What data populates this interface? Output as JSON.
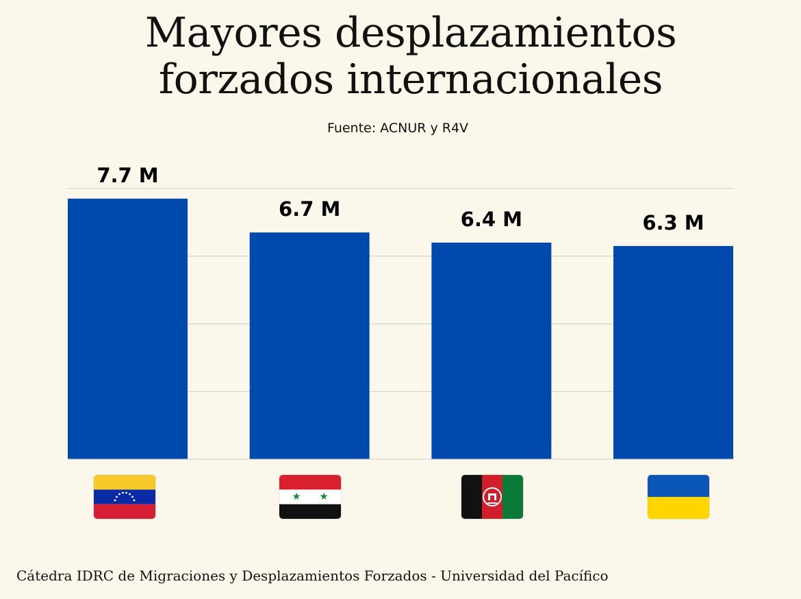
{
  "title_lines": [
    "Mayores desplazamientos",
    "forzados internacionales"
  ],
  "source": "Fuente: ACNUR y R4V",
  "footer": "Cátedra IDRC de Migraciones y Desplazamientos Forzados - Universidad del Pacífico",
  "colors": {
    "bar": "#004aad",
    "background": "#fcf7eb",
    "grid": "#cfcbc2"
  },
  "chart_data": {
    "type": "bar",
    "categories_icons": [
      "venezuela-flag-icon",
      "syria-flag-icon",
      "afghanistan-flag-icon",
      "ukraine-flag-icon"
    ],
    "values": [
      7.7,
      6.7,
      6.4,
      6.3
    ],
    "value_labels": [
      "7.7 M",
      "6.7 M",
      "6.4 M",
      "6.3 M"
    ],
    "unit": "M",
    "ylim": [
      0,
      8
    ],
    "grid": true,
    "legend": "none"
  }
}
